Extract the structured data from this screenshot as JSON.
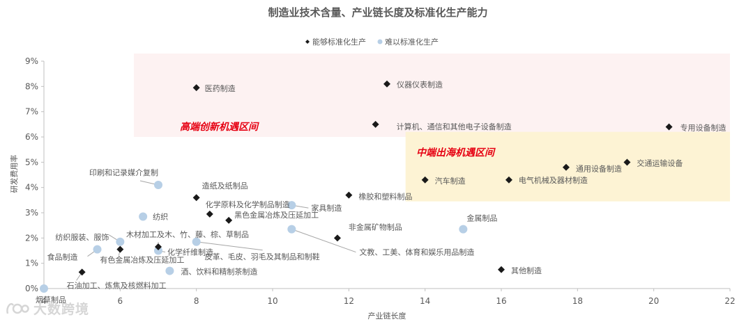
{
  "chart_data": {
    "type": "scatter",
    "title": "制造业技术含量、产业链长度及标准化生产能力",
    "xlabel": "产业链长度",
    "ylabel": "研发费用率",
    "xlim": [
      4,
      22
    ],
    "ylim": [
      0,
      9
    ],
    "x_ticks": [
      "4",
      "6",
      "8",
      "10",
      "12",
      "14",
      "16",
      "18",
      "20",
      "22"
    ],
    "y_ticks": [
      "0%",
      "1%",
      "2%",
      "3%",
      "4%",
      "5%",
      "6%",
      "7%",
      "8%",
      "9%"
    ],
    "grid": false,
    "legend_position": "top-center",
    "series": [
      {
        "name": "能够标准化生产",
        "color": "#1a1a1a",
        "marker": "diamond",
        "points": [
          {
            "x": 8.0,
            "y": 7.95,
            "label": "医药制造"
          },
          {
            "x": 13.0,
            "y": 8.1,
            "label": "仪器仪表制造"
          },
          {
            "x": 12.7,
            "y": 6.5,
            "label": "计算机、通信和其他电子设备制造"
          },
          {
            "x": 20.4,
            "y": 6.4,
            "label": "专用设备制造"
          },
          {
            "x": 19.3,
            "y": 5.0,
            "label": "交通运输设备"
          },
          {
            "x": 17.7,
            "y": 4.8,
            "label": "通用设备制造"
          },
          {
            "x": 14.0,
            "y": 4.3,
            "label": "汽车制造"
          },
          {
            "x": 16.2,
            "y": 4.3,
            "label": "电气机械及器材制造"
          },
          {
            "x": 12.0,
            "y": 3.7,
            "label": "橡胶和塑料制品"
          },
          {
            "x": 8.0,
            "y": 3.6,
            "label": "造纸及纸制品"
          },
          {
            "x": 8.35,
            "y": 2.95,
            "label": "化学原料及化学制品制造"
          },
          {
            "x": 8.85,
            "y": 2.7,
            "label": "黑色金属冶炼及压延加工"
          },
          {
            "x": 11.7,
            "y": 2.0,
            "label": "非金属矿物制品"
          },
          {
            "x": 7.0,
            "y": 1.65,
            "label": "木材加工及木、竹、藤、棕、草制品"
          },
          {
            "x": 6.0,
            "y": 1.55,
            "label": "有色金属冶炼及压延加工"
          },
          {
            "x": 5.0,
            "y": 0.65,
            "label": "石油加工、炼焦及核燃料加工"
          },
          {
            "x": 16.0,
            "y": 0.75,
            "label": "其他制造"
          }
        ]
      },
      {
        "name": "难以标准化生产",
        "color": "#b7cfe6",
        "marker": "circle",
        "points": [
          {
            "x": 7.0,
            "y": 4.1,
            "label": "印刷和记录媒介复制"
          },
          {
            "x": 6.6,
            "y": 2.85,
            "label": "纺织"
          },
          {
            "x": 10.5,
            "y": 3.3,
            "label": "家具制造"
          },
          {
            "x": 6.0,
            "y": 1.85,
            "label": "纺织服装、服饰"
          },
          {
            "x": 5.4,
            "y": 1.55,
            "label": "食品制造"
          },
          {
            "x": 7.0,
            "y": 1.5,
            "label": "化学纤维制造"
          },
          {
            "x": 8.0,
            "y": 1.85,
            "label": "皮革、毛皮、羽毛及其制品和制鞋"
          },
          {
            "x": 7.3,
            "y": 0.7,
            "label": "酒、饮料和精制茶制造"
          },
          {
            "x": 10.5,
            "y": 2.35,
            "label": "文教、工美、体育和娱乐用品制造"
          },
          {
            "x": 15.0,
            "y": 2.35,
            "label": "金属制品"
          },
          {
            "x": 4.0,
            "y": 0.0,
            "label": "烟草制品"
          }
        ]
      }
    ],
    "regions": [
      {
        "label": "高端创新机遇区间",
        "x_range": [
          7.0,
          22.0
        ],
        "y_range": [
          6.0,
          9.0
        ],
        "fill": "#fdf2f2",
        "text_color": "#e60012"
      },
      {
        "label": "中端出海机遇区间",
        "x_range": [
          14.0,
          22.0
        ],
        "y_range": [
          3.45,
          5.9
        ],
        "fill": "#fdf3d4",
        "text_color": "#e60012"
      }
    ]
  },
  "watermark": {
    "text": "大数跨境",
    "icon": "brand-logo-icon"
  }
}
